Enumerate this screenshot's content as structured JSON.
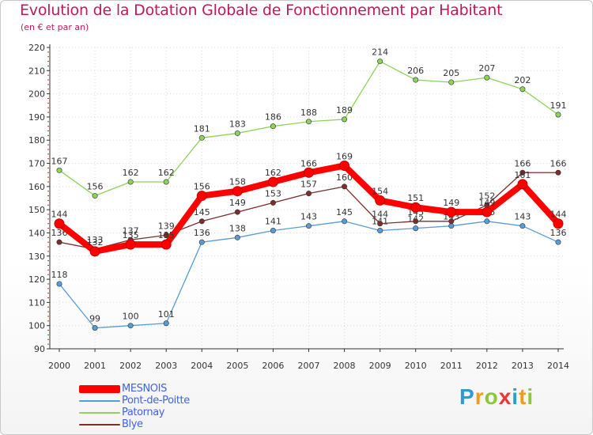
{
  "title": "Evolution de la Dotation Globale de Fonctionnement par Habitant",
  "subtitle": "(en € et par an)",
  "brand": {
    "text": "Proxiti",
    "letters": [
      {
        "ch": "P",
        "color": "#2e9bd6"
      },
      {
        "ch": "r",
        "color": "#f39c12"
      },
      {
        "ch": "o",
        "color": "#8cc63f"
      },
      {
        "ch": "x",
        "color": "#e53935"
      },
      {
        "ch": "i",
        "color": "#2e9bd6"
      },
      {
        "ch": "t",
        "color": "#f39c12"
      },
      {
        "ch": "i",
        "color": "#8cc63f"
      }
    ]
  },
  "chart_data": {
    "type": "line",
    "title": "Evolution de la Dotation Globale de Fonctionnement par Habitant",
    "ylabel": "(en € et par an)",
    "xlabel": "",
    "categories": [
      "2000",
      "2001",
      "2002",
      "2003",
      "2004",
      "2005",
      "2006",
      "2007",
      "2008",
      "2009",
      "2010",
      "2011",
      "2012",
      "2013",
      "2014"
    ],
    "ylim": [
      90,
      220
    ],
    "yticks": [
      90,
      100,
      110,
      120,
      130,
      140,
      150,
      160,
      170,
      180,
      190,
      200,
      210,
      220
    ],
    "grid": "dotted horizontal and vertical",
    "legend_position": "bottom-left",
    "series": [
      {
        "name": "Patornay",
        "color": "#8ed25a",
        "values": [
          167,
          156,
          162,
          162,
          181,
          183,
          186,
          188,
          189,
          214,
          206,
          205,
          207,
          202,
          191
        ]
      },
      {
        "name": "Pont-de-Poitte",
        "color": "#5b9bd5",
        "values": [
          118,
          99,
          100,
          101,
          136,
          138,
          141,
          143,
          145,
          141,
          142,
          143,
          145,
          143,
          136
        ]
      },
      {
        "name": "Blye",
        "color": "#7a2e2e",
        "values": [
          136,
          133,
          137,
          139,
          145,
          149,
          153,
          157,
          160,
          144,
          145,
          145,
          152,
          166,
          166
        ]
      },
      {
        "name": "MESNOIS",
        "color": "#ff0000",
        "values": [
          144,
          132,
          135,
          135,
          156,
          158,
          162,
          166,
          169,
          154,
          151,
          149,
          149,
          161,
          144
        ]
      }
    ]
  },
  "legend": [
    {
      "name": "MESNOIS",
      "color": "#ff0000",
      "text_color": "#3f64e8"
    },
    {
      "name": "Pont-de-Poitte",
      "color": "#5b9bd5",
      "text_color": "#3f64e8"
    },
    {
      "name": "Patornay",
      "color": "#8ed25a",
      "text_color": "#3f64e8"
    },
    {
      "name": "Blye",
      "color": "#7a2e2e",
      "text_color": "#3f64e8"
    }
  ]
}
